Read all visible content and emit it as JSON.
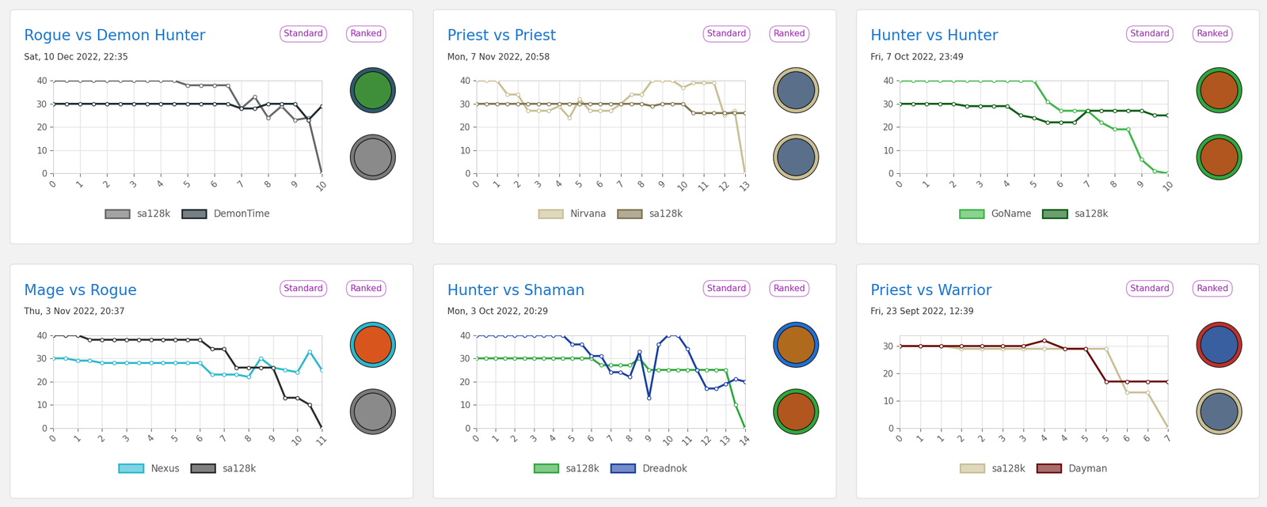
{
  "chart_data": [
    {
      "type": "line",
      "title": "Rogue vs Demon Hunter",
      "subtitle": "Sat, 10 Dec 2022, 22:35",
      "annotations": [
        "Standard",
        "Ranked"
      ],
      "x": [
        0,
        0.5,
        1,
        1.5,
        2,
        2.5,
        3,
        3.5,
        4,
        4.5,
        5,
        5.5,
        6,
        6.5,
        7,
        7.5,
        8,
        8.5,
        9,
        9.5,
        10
      ],
      "series": [
        {
          "name": "sa128k",
          "color": "#666666",
          "values": [
            40,
            40,
            40,
            40,
            40,
            40,
            40,
            40,
            40,
            40,
            38,
            38,
            38,
            38,
            28,
            33,
            24,
            29,
            23,
            24,
            0
          ]
        },
        {
          "name": "DemonTime",
          "color": "#1c2a30",
          "values": [
            30,
            30,
            30,
            30,
            30,
            30,
            30,
            30,
            30,
            30,
            30,
            30,
            30,
            30,
            28,
            28,
            30,
            30,
            30,
            23,
            29
          ]
        }
      ],
      "xlim": [
        0,
        10
      ],
      "xticks": [
        0,
        1,
        2,
        3,
        4,
        5,
        6,
        7,
        8,
        9,
        10
      ],
      "ylim": [
        0,
        40
      ],
      "yticks": [
        0,
        10,
        20,
        30,
        40
      ],
      "grid": true,
      "legend": "below",
      "marker": "o"
    },
    {
      "type": "line",
      "title": "Priest vs Priest",
      "subtitle": "Mon, 7 Nov 2022, 20:58",
      "annotations": [
        "Standard",
        "Ranked"
      ],
      "x": [
        0,
        0.5,
        1,
        1.5,
        2,
        2.5,
        3,
        3.5,
        4,
        4.5,
        5,
        5.5,
        6,
        6.5,
        7,
        7.5,
        8,
        8.5,
        9,
        9.5,
        10,
        10.5,
        11,
        11.5,
        12,
        12.5,
        13
      ],
      "series": [
        {
          "name": "Nirvana",
          "color": "#c9bf94",
          "values": [
            40,
            40,
            40,
            34,
            34,
            27,
            27,
            27,
            29,
            24,
            32,
            27,
            27,
            27,
            30,
            34,
            34,
            40,
            40,
            40,
            37,
            39,
            39,
            39,
            25,
            27,
            0
          ]
        },
        {
          "name": "sa128k",
          "color": "#7f7550",
          "values": [
            30,
            30,
            30,
            30,
            30,
            30,
            30,
            30,
            30,
            30,
            30,
            30,
            30,
            30,
            30,
            30,
            30,
            29,
            30,
            30,
            30,
            26,
            26,
            26,
            26,
            26,
            26
          ]
        }
      ],
      "xlim": [
        0,
        13
      ],
      "xticks": [
        0,
        1,
        2,
        3,
        4,
        5,
        6,
        7,
        8,
        9,
        10,
        11,
        12,
        13
      ],
      "ylim": [
        0,
        40
      ],
      "yticks": [
        0,
        10,
        20,
        30,
        40
      ],
      "grid": true,
      "legend": "below",
      "marker": "o"
    },
    {
      "type": "line",
      "title": "Hunter vs Hunter",
      "subtitle": "Fri, 7 Oct 2022, 23:49",
      "annotations": [
        "Standard",
        "Ranked"
      ],
      "x": [
        0,
        0.5,
        1,
        1.5,
        2,
        2.5,
        3,
        3.5,
        4,
        4.5,
        5,
        5.5,
        6,
        6.5,
        7,
        7.5,
        8,
        8.5,
        9,
        9.5,
        10
      ],
      "series": [
        {
          "name": "GoName",
          "color": "#3db54a",
          "values": [
            40,
            40,
            40,
            40,
            40,
            40,
            40,
            40,
            40,
            40,
            40,
            31,
            27,
            27,
            27,
            22,
            19,
            19,
            6,
            1,
            0
          ]
        },
        {
          "name": "sa128k",
          "color": "#0b5d12",
          "values": [
            30,
            30,
            30,
            30,
            30,
            29,
            29,
            29,
            29,
            25,
            24,
            22,
            22,
            22,
            27,
            27,
            27,
            27,
            27,
            25,
            25
          ]
        }
      ],
      "xlim": [
        0,
        10
      ],
      "xticks": [
        0,
        1,
        2,
        3,
        4,
        5,
        6,
        7,
        8,
        9,
        10
      ],
      "ylim": [
        0,
        40
      ],
      "yticks": [
        0,
        10,
        20,
        30,
        40
      ],
      "grid": true,
      "legend": "below",
      "marker": "o"
    },
    {
      "type": "line",
      "title": "Mage vs Rogue",
      "subtitle": "Thu, 3 Nov 2022, 20:37",
      "annotations": [
        "Standard",
        "Ranked"
      ],
      "x": [
        0,
        0.5,
        1,
        1.5,
        2,
        2.5,
        3,
        3.5,
        4,
        4.5,
        5,
        5.5,
        6,
        6.5,
        7,
        7.5,
        8,
        8.5,
        9,
        9.5,
        10,
        10.5,
        11
      ],
      "series": [
        {
          "name": "Nexus",
          "color": "#2bb8cf",
          "values": [
            30,
            30,
            29,
            29,
            28,
            28,
            28,
            28,
            28,
            28,
            28,
            28,
            28,
            23,
            23,
            23,
            22,
            30,
            26,
            25,
            24,
            33,
            25
          ]
        },
        {
          "name": "sa128k",
          "color": "#2b2b2b",
          "values": [
            40,
            40,
            40,
            38,
            38,
            38,
            38,
            38,
            38,
            38,
            38,
            38,
            38,
            34,
            34,
            26,
            26,
            26,
            26,
            13,
            13,
            10,
            0
          ]
        }
      ],
      "xlim": [
        0,
        11
      ],
      "xticks": [
        0,
        1,
        2,
        3,
        4,
        5,
        6,
        7,
        8,
        9,
        10,
        11
      ],
      "ylim": [
        0,
        40
      ],
      "yticks": [
        0,
        10,
        20,
        30,
        40
      ],
      "grid": true,
      "legend": "below",
      "marker": "o"
    },
    {
      "type": "line",
      "title": "Hunter vs Shaman",
      "subtitle": "Mon, 3 Oct 2022, 20:29",
      "annotations": [
        "Standard",
        "Ranked"
      ],
      "x": [
        0,
        0.5,
        1,
        1.5,
        2,
        2.5,
        3,
        3.5,
        4,
        4.5,
        5,
        5.5,
        6,
        6.5,
        7,
        7.5,
        8,
        8.5,
        9,
        9.5,
        10,
        10.5,
        11,
        11.5,
        12,
        12.5,
        13,
        13.5,
        14
      ],
      "series": [
        {
          "name": "sa128k",
          "color": "#2ea83a",
          "values": [
            30,
            30,
            30,
            30,
            30,
            30,
            30,
            30,
            30,
            30,
            30,
            30,
            30,
            27,
            27,
            27,
            27,
            30,
            25,
            25,
            25,
            25,
            25,
            25,
            25,
            25,
            25,
            10,
            0
          ]
        },
        {
          "name": "Dreadnok",
          "color": "#1a3fa3",
          "values": [
            40,
            40,
            40,
            40,
            40,
            40,
            40,
            40,
            40,
            40,
            36,
            36,
            31,
            31,
            24,
            24,
            22,
            33,
            13,
            36,
            40,
            40,
            34,
            25,
            17,
            17,
            19,
            21,
            20
          ]
        }
      ],
      "xlim": [
        0,
        14
      ],
      "xticks": [
        0,
        1,
        2,
        3,
        4,
        5,
        6,
        7,
        8,
        9,
        10,
        11,
        12,
        13,
        14
      ],
      "ylim": [
        0,
        40
      ],
      "yticks": [
        0,
        10,
        20,
        30,
        40
      ],
      "grid": true,
      "legend": "below",
      "marker": "o"
    },
    {
      "type": "line",
      "title": "Priest vs Warrior",
      "subtitle": "Fri, 23 Sept 2022, 12:39",
      "annotations": [
        "Standard",
        "Ranked"
      ],
      "categories": [
        "0",
        "1",
        "1",
        "2",
        "2",
        "3",
        "3",
        "4",
        "4",
        "5",
        "5",
        "6",
        "6",
        "7"
      ],
      "series": [
        {
          "name": "sa128k",
          "color": "#c9bf94",
          "values": [
            30,
            30,
            30,
            29,
            29,
            29,
            29,
            29,
            29,
            29,
            29,
            13,
            13,
            0
          ]
        },
        {
          "name": "Dayman",
          "color": "#6b0c0c",
          "values": [
            30,
            30,
            30,
            30,
            30,
            30,
            30,
            32,
            29,
            29,
            17,
            17,
            17,
            17
          ]
        }
      ],
      "ylim": [
        0,
        34
      ],
      "yticks": [
        0,
        10,
        20,
        30
      ],
      "grid": true,
      "legend": "below",
      "marker": "o"
    }
  ]
}
